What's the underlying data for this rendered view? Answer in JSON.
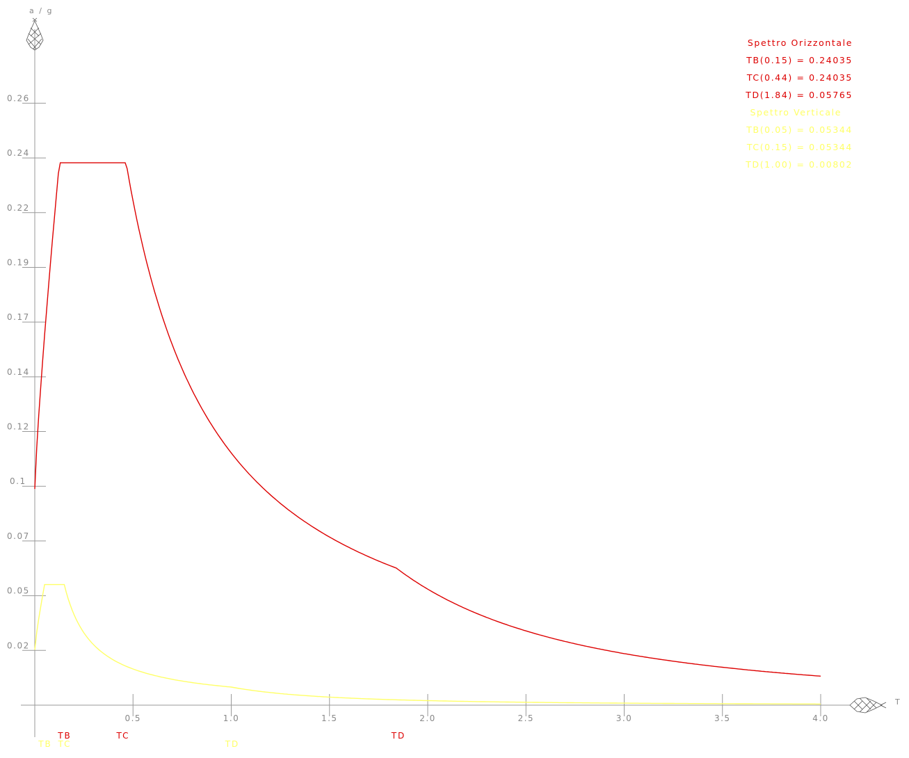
{
  "chart_data": {
    "type": "line",
    "ylabel": "a / g",
    "xlabel": "T",
    "xlim": [
      0,
      4.0
    ],
    "ylim": [
      0,
      0.27
    ],
    "x_tick_labels": [
      "0.5",
      "1.0",
      "1.5",
      "2.0",
      "2.5",
      "3.0",
      "3.5",
      "4.0"
    ],
    "y_tick_labels": [
      "0.02",
      "0.05",
      "0.07",
      "0.1",
      "0.12",
      "0.14",
      "0.17",
      "0.19",
      "0.22",
      "0.24",
      "0.26"
    ],
    "legend": {
      "horizontal_title": "Spettro Orizzontale",
      "horizontal_lines": [
        "TB(0.15) = 0.24035",
        "TC(0.44) = 0.24035",
        "TD(1.84) = 0.05765"
      ],
      "vertical_title": "Spettro Verticale",
      "vertical_lines": [
        "TB(0.05) = 0.05344",
        "TC(0.15) = 0.05344",
        "TD(1.00) = 0.00802"
      ]
    },
    "period_markers": {
      "horizontal": {
        "TB": "TB",
        "TC": "TC",
        "TD": "TD"
      },
      "vertical": {
        "TB": "TB",
        "TC": "TC",
        "TD": "TD"
      }
    },
    "series": [
      {
        "name": "Spettro Orizzontale",
        "color": "#dd0000",
        "x": [
          0.0,
          0.15,
          0.44,
          1.84,
          4.0
        ],
        "y": [
          0.0958,
          0.24035,
          0.24035,
          0.05765,
          0.01325
        ],
        "params": {
          "y0": 0.0958,
          "TB": 0.15,
          "TC": 0.44,
          "TD": 1.84,
          "plateau": 0.24035,
          "TB_cut": 0.125,
          "TC_cut": 0.465
        }
      },
      {
        "name": "Spettro Verticale",
        "color": "#ffff66",
        "x": [
          0.0,
          0.05,
          0.15,
          1.0,
          4.0
        ],
        "y": [
          0.0245,
          0.05344,
          0.05344,
          0.00802,
          0.0005
        ],
        "params": {
          "y0": 0.0245,
          "TB": 0.05,
          "TC": 0.15,
          "TD": 1.0,
          "plateau": 0.05344,
          "TB_cut": 0.05,
          "TC_cut": 0.15
        }
      }
    ]
  }
}
